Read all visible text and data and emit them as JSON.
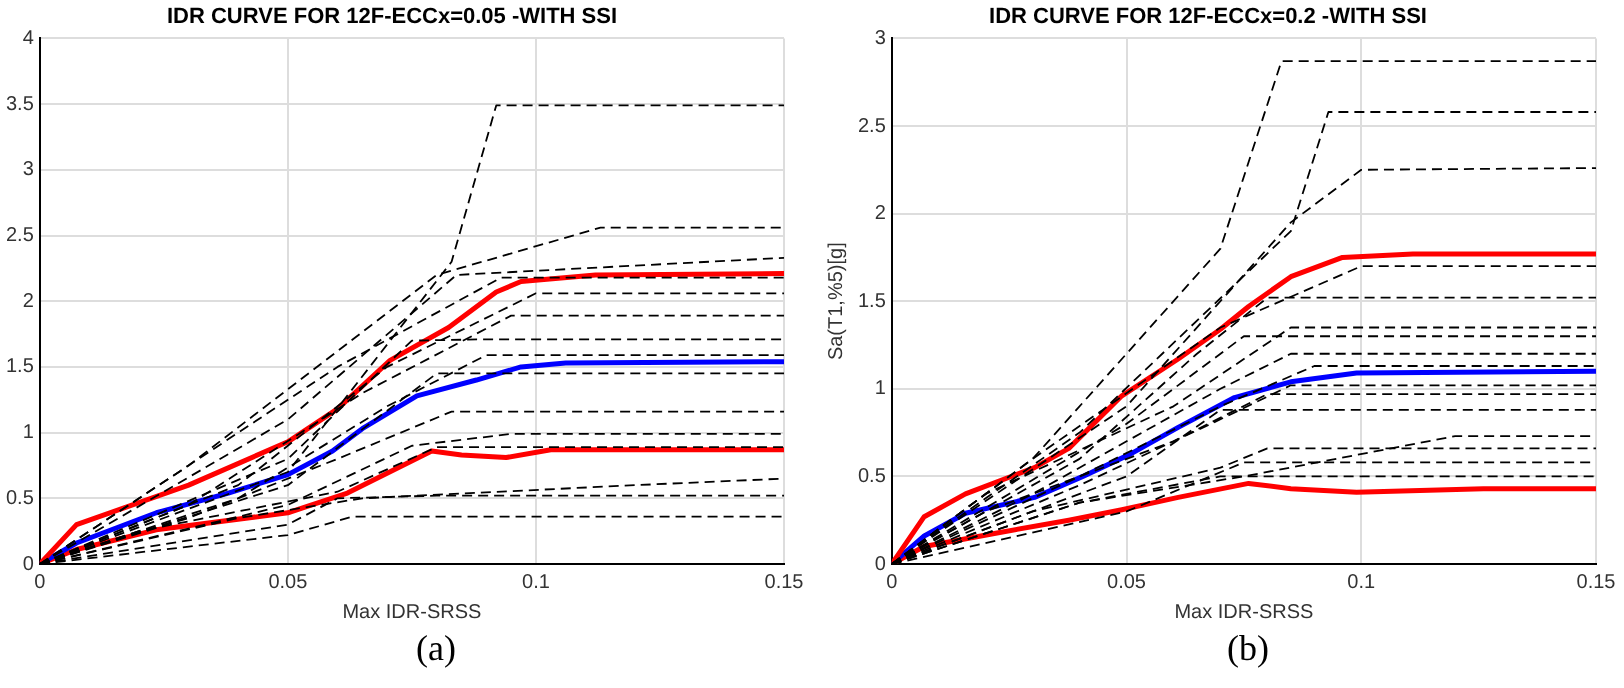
{
  "chart_data": [
    {
      "type": "line",
      "title": "IDR CURVE FOR 12F-ECCx=0.05 -WITH SSI",
      "xlabel": "Max IDR-SRSS",
      "annotations": [
        "(a)"
      ],
      "xlim": [
        0,
        0.15
      ],
      "xticks": [
        0,
        0.05,
        0.1,
        0.15
      ],
      "ylim": [
        0,
        4
      ],
      "yticks": [
        0,
        0.5,
        1,
        1.5,
        2,
        2.5,
        3,
        3.5,
        4
      ],
      "grid": true,
      "series": [
        {
          "color": "#000000",
          "line_style": "dashed",
          "x": [
            0,
            0.05,
            0.083,
            0.092,
            0.15
          ],
          "values": [
            0,
            0.7,
            2.3,
            3.49,
            3.49
          ]
        },
        {
          "color": "#000000",
          "line_style": "dashed",
          "x": [
            0,
            0.03,
            0.08,
            0.113,
            0.15
          ],
          "values": [
            0,
            0.75,
            2.2,
            2.56,
            2.56
          ]
        },
        {
          "color": "#000000",
          "line_style": "dashed",
          "x": [
            0,
            0.05,
            0.084,
            0.15
          ],
          "values": [
            0,
            1.1,
            2.2,
            2.33
          ]
        },
        {
          "color": "#000000",
          "line_style": "dashed",
          "x": [
            0,
            0.02,
            0.06,
            0.093,
            0.15
          ],
          "values": [
            0,
            0.5,
            1.5,
            2.18,
            2.18
          ]
        },
        {
          "color": "#000000",
          "line_style": "dashed",
          "x": [
            0,
            0.04,
            0.07,
            0.1,
            0.15
          ],
          "values": [
            0,
            0.6,
            1.5,
            2.06,
            2.06
          ]
        },
        {
          "color": "#000000",
          "line_style": "dashed",
          "x": [
            0,
            0.03,
            0.065,
            0.095,
            0.15
          ],
          "values": [
            0,
            0.45,
            1.3,
            1.89,
            1.89
          ]
        },
        {
          "color": "#000000",
          "line_style": "dashed",
          "x": [
            0,
            0.05,
            0.075,
            0.09,
            0.15
          ],
          "values": [
            0,
            0.8,
            1.7,
            1.71,
            1.71
          ]
        },
        {
          "color": "#000000",
          "line_style": "dashed",
          "x": [
            0,
            0.04,
            0.07,
            0.09,
            0.15
          ],
          "values": [
            0,
            0.5,
            1.2,
            1.59,
            1.59
          ]
        },
        {
          "color": "#000000",
          "line_style": "dashed",
          "x": [
            0,
            0.05,
            0.08,
            0.15
          ],
          "values": [
            0,
            0.6,
            1.45,
            1.45
          ]
        },
        {
          "color": "#000000",
          "line_style": "dashed",
          "x": [
            0,
            0.03,
            0.06,
            0.083,
            0.15
          ],
          "values": [
            0,
            0.35,
            0.8,
            1.16,
            1.16
          ]
        },
        {
          "color": "#000000",
          "line_style": "dashed",
          "x": [
            0,
            0.05,
            0.075,
            0.095,
            0.15
          ],
          "values": [
            0,
            0.45,
            0.9,
            0.99,
            0.99
          ]
        },
        {
          "color": "#000000",
          "line_style": "dashed",
          "x": [
            0,
            0.02,
            0.06,
            0.08,
            0.15
          ],
          "values": [
            0,
            0.25,
            0.55,
            0.89,
            0.89
          ]
        },
        {
          "color": "#000000",
          "line_style": "dashed",
          "x": [
            0,
            0.04,
            0.065,
            0.12,
            0.15
          ],
          "values": [
            0,
            0.35,
            0.5,
            0.6,
            0.65
          ]
        },
        {
          "color": "#000000",
          "line_style": "dashed",
          "x": [
            0,
            0.05,
            0.06,
            0.08,
            0.15
          ],
          "values": [
            0,
            0.3,
            0.5,
            0.52,
            0.52
          ]
        },
        {
          "color": "#000000",
          "line_style": "dashed",
          "x": [
            0,
            0.05,
            0.063,
            0.15
          ],
          "values": [
            0,
            0.22,
            0.36,
            0.36
          ]
        },
        {
          "color": "#ff0000",
          "line_style": "solid",
          "x": [
            0,
            0.0074,
            0.03,
            0.05,
            0.06,
            0.0706,
            0.0824,
            0.092,
            0.097,
            0.112,
            0.15
          ],
          "values": [
            0,
            0.3,
            0.6,
            0.93,
            1.18,
            1.55,
            1.8,
            2.07,
            2.15,
            2.2,
            2.21
          ]
        },
        {
          "color": "#0000ff",
          "line_style": "solid",
          "x": [
            0,
            0.0074,
            0.0235,
            0.038,
            0.05,
            0.059,
            0.065,
            0.076,
            0.088,
            0.097,
            0.106,
            0.15
          ],
          "values": [
            0,
            0.16,
            0.39,
            0.54,
            0.68,
            0.86,
            1.03,
            1.28,
            1.4,
            1.5,
            1.53,
            1.54
          ]
        },
        {
          "color": "#ff0000",
          "line_style": "solid",
          "x": [
            0,
            0.0074,
            0.0235,
            0.05,
            0.062,
            0.079,
            0.085,
            0.094,
            0.103,
            0.15
          ],
          "values": [
            0,
            0.11,
            0.26,
            0.39,
            0.54,
            0.86,
            0.83,
            0.81,
            0.87,
            0.87
          ]
        }
      ]
    },
    {
      "type": "line",
      "title": "IDR CURVE FOR 12F-ECCx=0.2 -WITH SSI",
      "xlabel": "Max IDR-SRSS",
      "ylabel": "Sa(T1,%5)[g]",
      "annotations": [
        "(b)"
      ],
      "xlim": [
        0,
        0.15
      ],
      "xticks": [
        0,
        0.05,
        0.1,
        0.15
      ],
      "ylim": [
        0,
        3
      ],
      "yticks": [
        0,
        0.5,
        1,
        1.5,
        2,
        2.5,
        3
      ],
      "grid": true,
      "series": [
        {
          "color": "#000000",
          "line_style": "dashed",
          "x": [
            0,
            0.03,
            0.07,
            0.083,
            0.15
          ],
          "values": [
            0,
            0.6,
            1.8,
            2.87,
            2.87
          ]
        },
        {
          "color": "#000000",
          "line_style": "dashed",
          "x": [
            0,
            0.04,
            0.085,
            0.093,
            0.15
          ],
          "values": [
            0,
            0.75,
            1.9,
            2.58,
            2.58
          ]
        },
        {
          "color": "#000000",
          "line_style": "dashed",
          "x": [
            0,
            0.05,
            0.085,
            0.1,
            0.15
          ],
          "values": [
            0,
            0.9,
            1.95,
            2.25,
            2.26
          ]
        },
        {
          "color": "#000000",
          "line_style": "dashed",
          "x": [
            0,
            0.03,
            0.07,
            0.1,
            0.15
          ],
          "values": [
            0,
            0.6,
            1.35,
            1.7,
            1.7
          ]
        },
        {
          "color": "#000000",
          "line_style": "dashed",
          "x": [
            0,
            0.04,
            0.065,
            0.08,
            0.15
          ],
          "values": [
            0,
            0.6,
            1.2,
            1.52,
            1.52
          ]
        },
        {
          "color": "#000000",
          "line_style": "dashed",
          "x": [
            0,
            0.02,
            0.06,
            0.085,
            0.15
          ],
          "values": [
            0,
            0.4,
            0.9,
            1.35,
            1.35
          ]
        },
        {
          "color": "#000000",
          "line_style": "dashed",
          "x": [
            0,
            0.05,
            0.075,
            0.15
          ],
          "values": [
            0,
            0.8,
            1.3,
            1.3
          ]
        },
        {
          "color": "#000000",
          "line_style": "dashed",
          "x": [
            0,
            0.03,
            0.07,
            0.085,
            0.15
          ],
          "values": [
            0,
            0.4,
            1.0,
            1.2,
            1.2
          ]
        },
        {
          "color": "#000000",
          "line_style": "dashed",
          "x": [
            0,
            0.04,
            0.07,
            0.09,
            0.15
          ],
          "values": [
            0,
            0.5,
            0.9,
            1.13,
            1.13
          ]
        },
        {
          "color": "#000000",
          "line_style": "dashed",
          "x": [
            0,
            0.04,
            0.068,
            0.085,
            0.15
          ],
          "values": [
            0,
            0.45,
            0.8,
            1.02,
            1.02
          ]
        },
        {
          "color": "#000000",
          "line_style": "dashed",
          "x": [
            0,
            0.02,
            0.06,
            0.08,
            0.15
          ],
          "values": [
            0,
            0.3,
            0.7,
            0.97,
            0.97
          ]
        },
        {
          "color": "#000000",
          "line_style": "dashed",
          "x": [
            0,
            0.05,
            0.07,
            0.15
          ],
          "values": [
            0,
            0.5,
            0.88,
            0.88
          ]
        },
        {
          "color": "#000000",
          "line_style": "dashed",
          "x": [
            0,
            0.04,
            0.075,
            0.12,
            0.15
          ],
          "values": [
            0,
            0.35,
            0.5,
            0.73,
            0.73
          ]
        },
        {
          "color": "#000000",
          "line_style": "dashed",
          "x": [
            0,
            0.03,
            0.07,
            0.08,
            0.15
          ],
          "values": [
            0,
            0.3,
            0.55,
            0.66,
            0.66
          ]
        },
        {
          "color": "#000000",
          "line_style": "dashed",
          "x": [
            0,
            0.05,
            0.075,
            0.15
          ],
          "values": [
            0,
            0.3,
            0.58,
            0.58
          ]
        },
        {
          "color": "#000000",
          "line_style": "dashed",
          "x": [
            0,
            0.04,
            0.07,
            0.15
          ],
          "values": [
            0,
            0.35,
            0.5,
            0.5
          ]
        },
        {
          "color": "#ff0000",
          "line_style": "solid",
          "x": [
            0,
            0.0069,
            0.0157,
            0.0304,
            0.0377,
            0.049,
            0.061,
            0.07,
            0.076,
            0.085,
            0.096,
            0.111,
            0.15
          ],
          "values": [
            0,
            0.27,
            0.4,
            0.55,
            0.66,
            0.96,
            1.17,
            1.34,
            1.47,
            1.64,
            1.75,
            1.77,
            1.77
          ]
        },
        {
          "color": "#0000ff",
          "line_style": "solid",
          "x": [
            0,
            0.0069,
            0.0157,
            0.0304,
            0.0407,
            0.051,
            0.061,
            0.073,
            0.085,
            0.099,
            0.15
          ],
          "values": [
            0,
            0.16,
            0.29,
            0.38,
            0.5,
            0.63,
            0.78,
            0.95,
            1.04,
            1.09,
            1.1
          ]
        },
        {
          "color": "#ff0000",
          "line_style": "solid",
          "x": [
            0,
            0.0069,
            0.023,
            0.0377,
            0.049,
            0.061,
            0.076,
            0.085,
            0.099,
            0.126,
            0.15
          ],
          "values": [
            0,
            0.1,
            0.18,
            0.25,
            0.31,
            0.38,
            0.46,
            0.43,
            0.41,
            0.43,
            0.43
          ]
        }
      ]
    }
  ]
}
